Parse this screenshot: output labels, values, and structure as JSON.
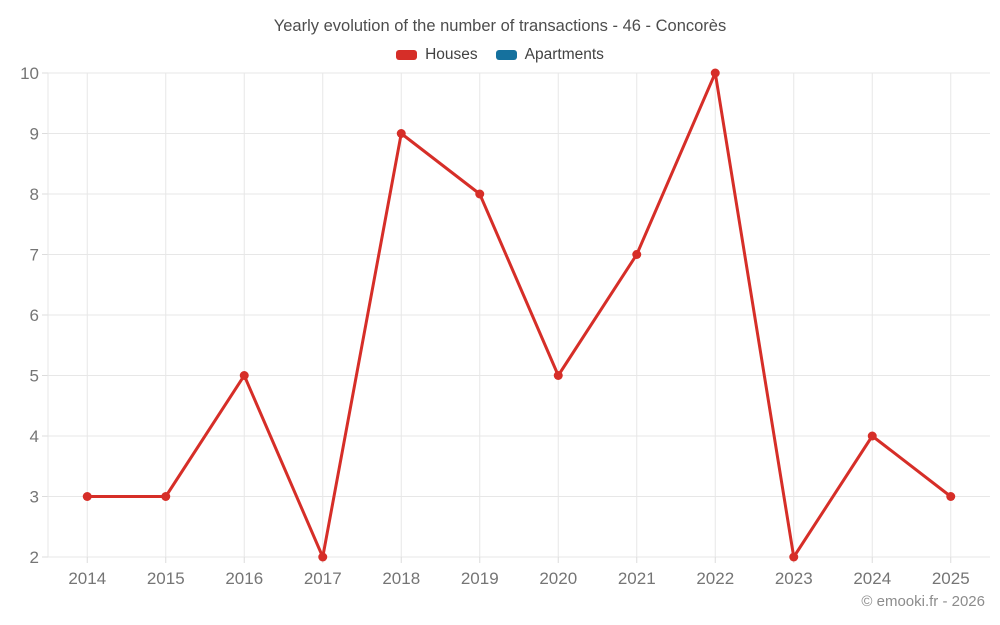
{
  "title": "Yearly evolution of the number of transactions - 46 - Concorès",
  "footer": "© emooki.fr - 2026",
  "colors": {
    "grid": "#e7e7e7",
    "tick": "#dcdcdc",
    "axis_text": "#757575",
    "title_text": "#4d4d4d",
    "footer_text": "#8c8c8c"
  },
  "chart_data": {
    "type": "line",
    "title": "Yearly evolution of the number of transactions - 46 - Concorès",
    "categories": [
      "2014",
      "2015",
      "2016",
      "2017",
      "2018",
      "2019",
      "2020",
      "2021",
      "2022",
      "2023",
      "2024",
      "2025"
    ],
    "series": [
      {
        "name": "Houses",
        "color": "#d62e28",
        "values": [
          3,
          3,
          5,
          2,
          9,
          8,
          5,
          7,
          10,
          2,
          4,
          3
        ]
      },
      {
        "name": "Apartments",
        "color": "#15719e",
        "values": []
      }
    ],
    "xlabel": "",
    "ylabel": "",
    "ylim": [
      2,
      10
    ],
    "ytick_step": 1,
    "grid": true,
    "legend_position": "top",
    "marker": "circle"
  }
}
